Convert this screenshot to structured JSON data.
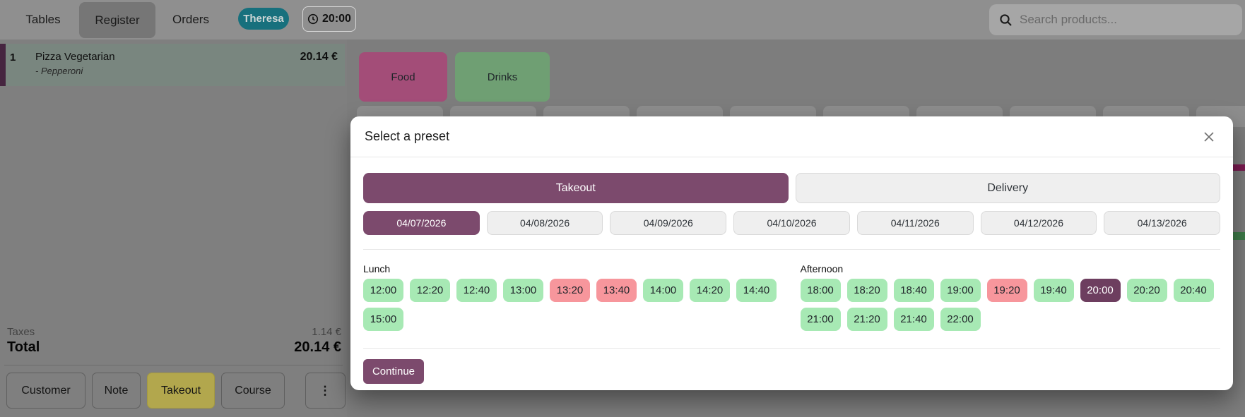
{
  "topbar": {
    "nav": [
      {
        "label": "Tables",
        "active": false
      },
      {
        "label": "Register",
        "active": true
      },
      {
        "label": "Orders",
        "active": false
      }
    ],
    "user_badge": "Theresa",
    "clock": "20:00",
    "search": {
      "placeholder": "Search products...",
      "icon": "search-icon"
    }
  },
  "order_panel": {
    "line": {
      "qty": "1",
      "name": "Pizza Vegetarian",
      "note": "- Pepperoni",
      "price": "20.14 €"
    },
    "summary": {
      "taxes_label": "Taxes",
      "taxes_value": "1.14 €",
      "total_label": "Total",
      "total_value": "20.14 €"
    },
    "actions": [
      {
        "label": "Customer",
        "active": false
      },
      {
        "label": "Note",
        "active": false
      },
      {
        "label": "Takeout",
        "active": true
      },
      {
        "label": "Course",
        "active": false
      },
      {
        "label": "⋮",
        "icon": "more-vertical-icon",
        "active": false
      }
    ]
  },
  "categories": [
    {
      "label": "Food",
      "color": "#a34d78"
    },
    {
      "label": "Drinks",
      "color": "#6f9f73"
    }
  ],
  "modal": {
    "title": "Select a preset",
    "close_icon": "close-icon",
    "presets": [
      {
        "label": "Takeout",
        "selected": true
      },
      {
        "label": "Delivery",
        "selected": false
      }
    ],
    "dates": [
      {
        "label": "04/07/2026",
        "selected": true
      },
      {
        "label": "04/08/2026",
        "selected": false
      },
      {
        "label": "04/09/2026",
        "selected": false
      },
      {
        "label": "04/10/2026",
        "selected": false
      },
      {
        "label": "04/11/2026",
        "selected": false
      },
      {
        "label": "04/12/2026",
        "selected": false
      },
      {
        "label": "04/13/2026",
        "selected": false
      }
    ],
    "slot_groups": [
      {
        "name": "Lunch",
        "slots": [
          {
            "time": "12:00",
            "state": "available"
          },
          {
            "time": "12:20",
            "state": "available"
          },
          {
            "time": "12:40",
            "state": "available"
          },
          {
            "time": "13:00",
            "state": "available"
          },
          {
            "time": "13:20",
            "state": "full"
          },
          {
            "time": "13:40",
            "state": "full"
          },
          {
            "time": "14:00",
            "state": "available"
          },
          {
            "time": "14:20",
            "state": "available"
          },
          {
            "time": "14:40",
            "state": "available"
          },
          {
            "time": "15:00",
            "state": "available"
          }
        ]
      },
      {
        "name": "Afternoon",
        "slots": [
          {
            "time": "18:00",
            "state": "available"
          },
          {
            "time": "18:20",
            "state": "available"
          },
          {
            "time": "18:40",
            "state": "available"
          },
          {
            "time": "19:00",
            "state": "available"
          },
          {
            "time": "19:20",
            "state": "full"
          },
          {
            "time": "19:40",
            "state": "available"
          },
          {
            "time": "20:00",
            "state": "selected"
          },
          {
            "time": "20:20",
            "state": "available"
          },
          {
            "time": "20:40",
            "state": "available"
          },
          {
            "time": "21:00",
            "state": "available"
          },
          {
            "time": "21:20",
            "state": "available"
          },
          {
            "time": "21:40",
            "state": "available"
          },
          {
            "time": "22:00",
            "state": "available"
          }
        ]
      }
    ],
    "continue_label": "Continue"
  },
  "colors": {
    "accent_purple": "#7c4a6d",
    "selected_slot_purple": "#6d3e5f",
    "slot_available_green": "#a7e9b4",
    "slot_full_red": "#f7969c",
    "takeout_active_yellow": "#b2a74d",
    "user_badge_teal": "#17707d",
    "category_food": "#a34d78",
    "category_drinks": "#6f9f73"
  }
}
